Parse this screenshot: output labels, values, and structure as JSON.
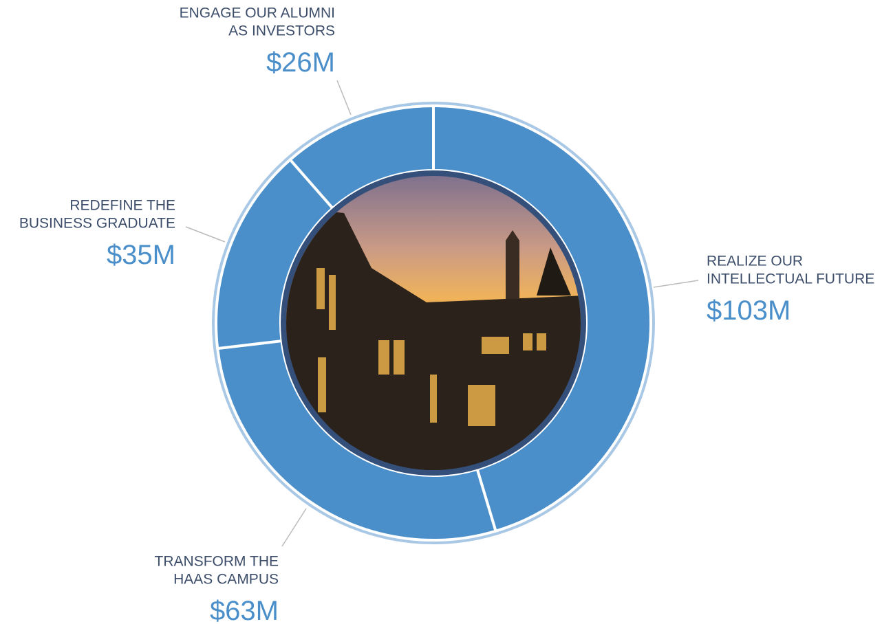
{
  "chart_data": {
    "type": "donut",
    "categories": [
      [
        "REALIZE OUR",
        "INTELLECTUAL FUTURE"
      ],
      [
        "TRANSFORM THE",
        "HAAS CAMPUS"
      ],
      [
        "REDEFINE THE",
        "BUSINESS GRADUATE"
      ],
      [
        "ENGAGE OUR ALUMNI",
        "AS INVESTORS"
      ]
    ],
    "values": [
      103,
      63,
      35,
      26
    ],
    "value_labels": [
      "$103M",
      "$63M",
      "$35M",
      "$26M"
    ],
    "color": "#4a8fca"
  }
}
